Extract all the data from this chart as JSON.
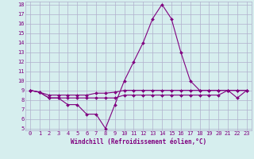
{
  "xlabel": "Windchill (Refroidissement éolien,°C)",
  "x_values": [
    0,
    1,
    2,
    3,
    4,
    5,
    6,
    7,
    8,
    9,
    10,
    11,
    12,
    13,
    14,
    15,
    16,
    17,
    18,
    19,
    20,
    21,
    22,
    23
  ],
  "line1": [
    9,
    8.8,
    8.2,
    8.2,
    7.5,
    7.5,
    6.5,
    6.5,
    5.0,
    7.5,
    10.0,
    12.0,
    14.0,
    16.5,
    18.0,
    16.5,
    13.0,
    10.0,
    9.0,
    9.0,
    9.0,
    9.0,
    8.2,
    9.0
  ],
  "line2": [
    9.0,
    8.8,
    8.2,
    8.2,
    8.2,
    8.2,
    8.2,
    8.2,
    8.2,
    8.2,
    8.5,
    8.5,
    8.5,
    8.5,
    8.5,
    8.5,
    8.5,
    8.5,
    8.5,
    8.5,
    8.5,
    9.0,
    9.0,
    9.0
  ],
  "line3": [
    9.0,
    8.8,
    8.5,
    8.5,
    8.5,
    8.5,
    8.5,
    8.7,
    8.7,
    8.8,
    9.0,
    9.0,
    9.0,
    9.0,
    9.0,
    9.0,
    9.0,
    9.0,
    9.0,
    9.0,
    9.0,
    9.0,
    9.0,
    9.0
  ],
  "ylim_min": 5,
  "ylim_max": 18,
  "xlim_min": 0,
  "xlim_max": 23,
  "yticks": [
    5,
    6,
    7,
    8,
    9,
    10,
    11,
    12,
    13,
    14,
    15,
    16,
    17,
    18
  ],
  "xticks": [
    0,
    1,
    2,
    3,
    4,
    5,
    6,
    7,
    8,
    9,
    10,
    11,
    12,
    13,
    14,
    15,
    16,
    17,
    18,
    19,
    20,
    21,
    22,
    23
  ],
  "line_color": "#800080",
  "bg_color": "#d6eeee",
  "grid_color": "#b0b0cc",
  "marker": "D",
  "marker_size": 2.0,
  "line_width": 0.8,
  "tick_fontsize": 5.0,
  "xlabel_fontsize": 5.5
}
